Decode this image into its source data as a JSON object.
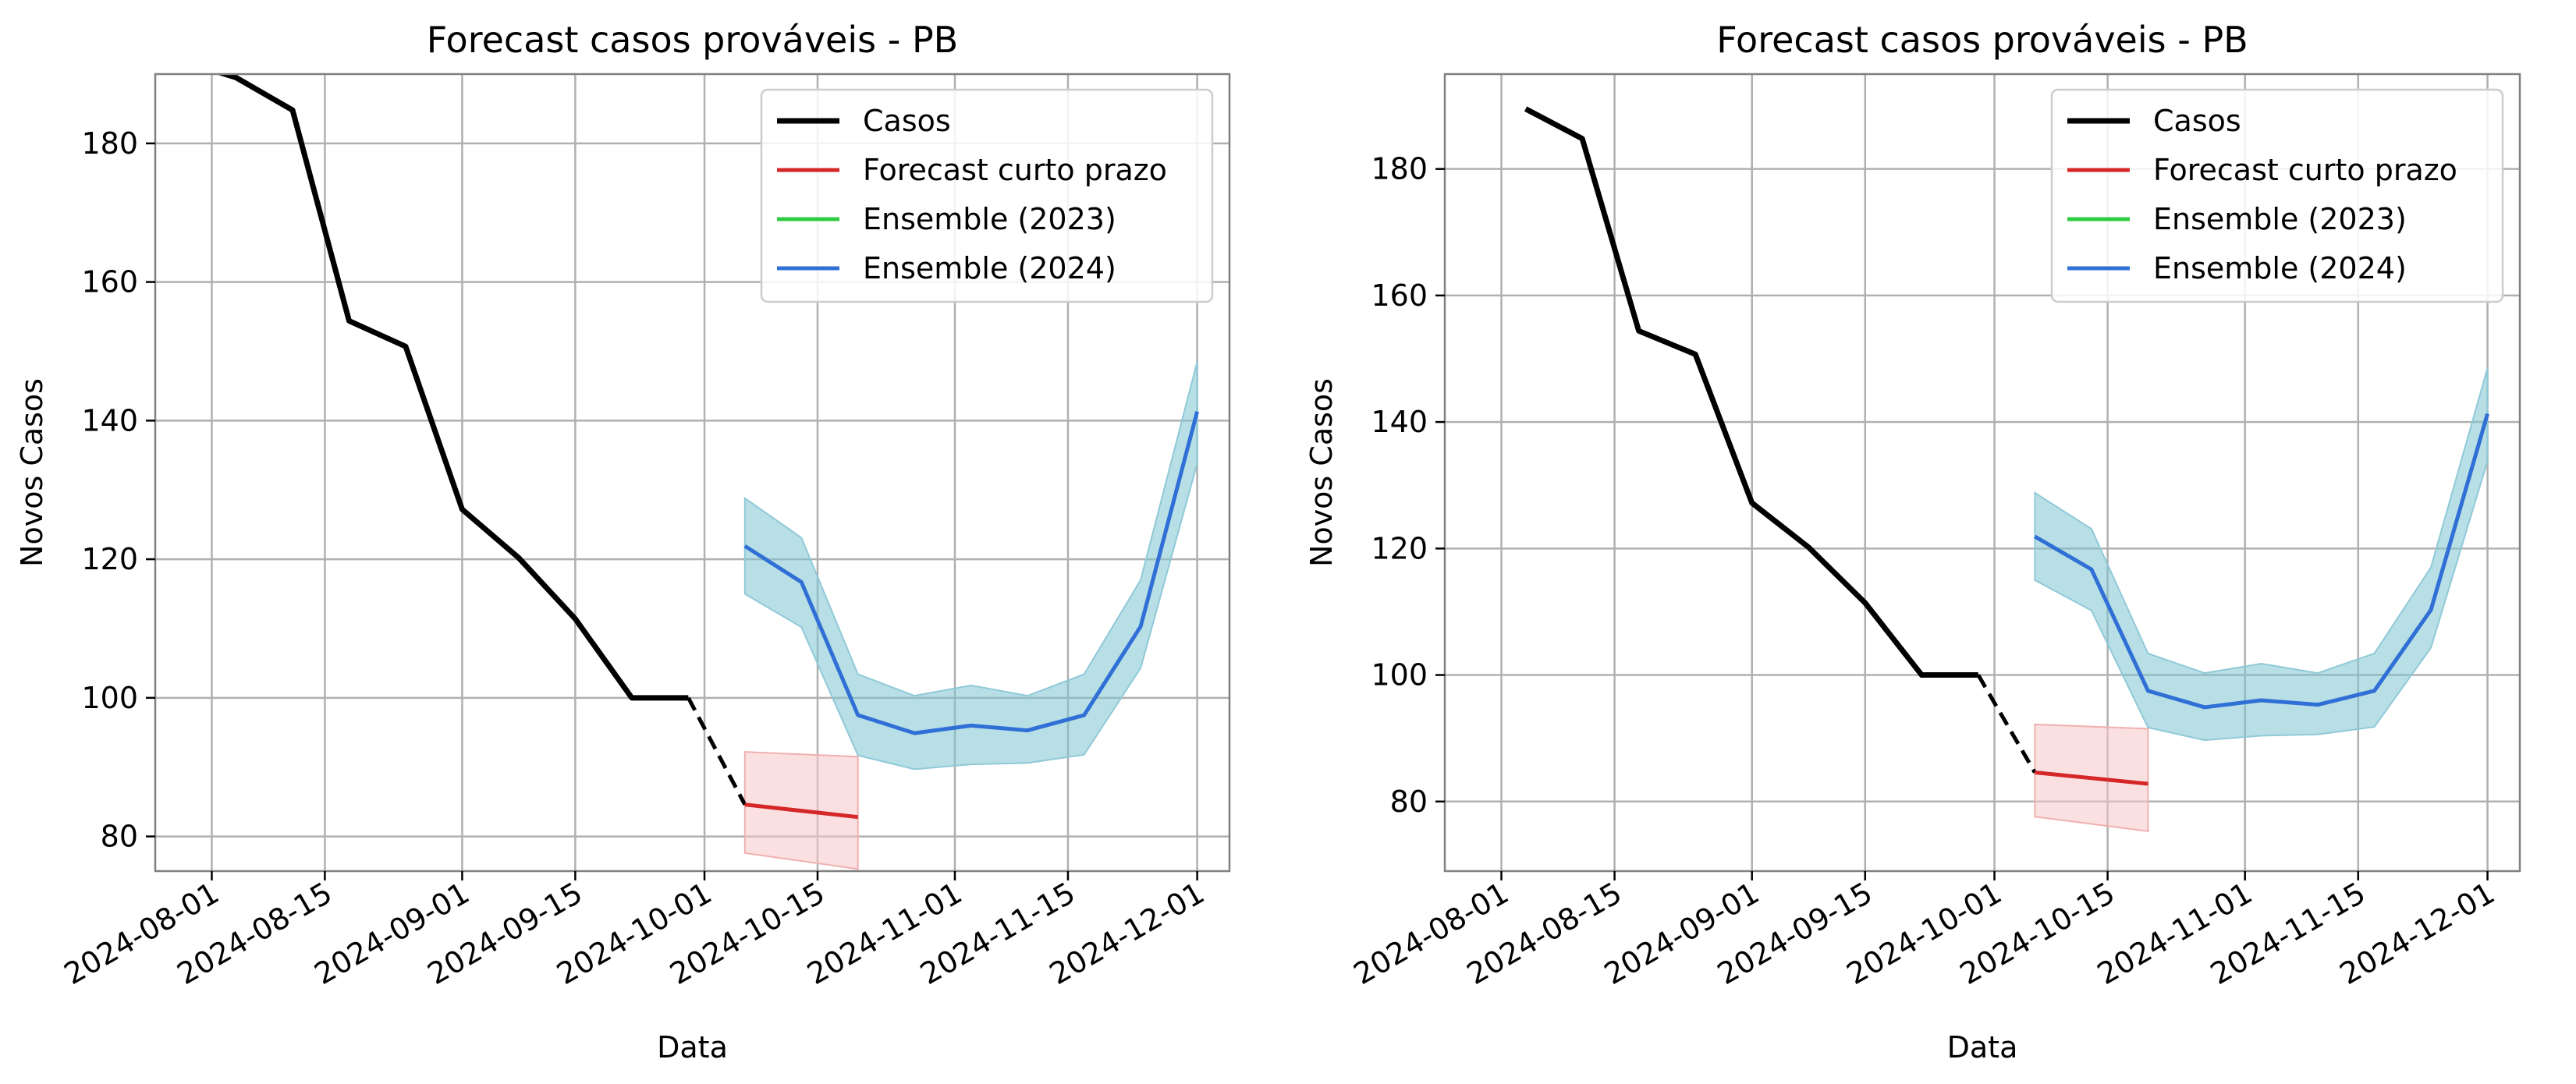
{
  "chart_data": [
    {
      "type": "line",
      "title": "Forecast casos prováveis - PB",
      "xlabel": "Data",
      "ylabel": "Novos Casos",
      "xlim": [
        "2024-07-25",
        "2024-12-05"
      ],
      "ylim": [
        75,
        190
      ],
      "xticks": [
        "2024-08-01",
        "2024-08-15",
        "2024-09-01",
        "2024-09-15",
        "2024-10-01",
        "2024-10-15",
        "2024-11-01",
        "2024-11-15",
        "2024-12-01"
      ],
      "yticks": [
        80,
        100,
        120,
        140,
        160,
        180
      ],
      "grid": true,
      "legend": "top-right",
      "colors": {
        "casos": "#000000",
        "forecast": "#d62728",
        "ens2023": "#2ecc40",
        "ens2024": "#2f6fd6",
        "band2024": "#7ec5cf",
        "bandForecast": "#f5c6c6"
      },
      "series": [
        {
          "name": "Casos",
          "key": "casos",
          "x": [
            "2024-07-28",
            "2024-08-04",
            "2024-08-11",
            "2024-08-18",
            "2024-08-25",
            "2024-09-01",
            "2024-09-08",
            "2024-09-15",
            "2024-09-22",
            "2024-09-29"
          ],
          "y": [
            192,
            189.5,
            184.8,
            154.4,
            150.7,
            127.2,
            120.2,
            111.4,
            100,
            100
          ]
        },
        {
          "name": "",
          "key": "bridge",
          "x": [
            "2024-09-29",
            "2024-10-06"
          ],
          "y": [
            100,
            84.6
          ]
        },
        {
          "name": "Forecast curto prazo",
          "key": "forecast",
          "x": [
            "2024-10-06",
            "2024-10-20"
          ],
          "y": [
            84.6,
            82.8
          ],
          "lower": [
            77.6,
            75.3
          ],
          "upper": [
            92.2,
            91.5
          ]
        },
        {
          "name": "Ensemble (2023)",
          "key": "ens2023",
          "x": [],
          "y": []
        },
        {
          "name": "Ensemble (2024)",
          "key": "ens2024",
          "x": [
            "2024-10-06",
            "2024-10-13",
            "2024-10-20",
            "2024-10-27",
            "2024-11-03",
            "2024-11-10",
            "2024-11-17",
            "2024-11-24",
            "2024-12-01"
          ],
          "y": [
            121.9,
            116.7,
            97.5,
            94.9,
            96.0,
            95.3,
            97.5,
            110.3,
            141.3
          ],
          "lower": [
            115.0,
            110.2,
            91.7,
            89.7,
            90.4,
            90.6,
            91.8,
            104.3,
            133.8
          ],
          "upper": [
            128.8,
            123.1,
            103.4,
            100.3,
            101.8,
            100.3,
            103.4,
            117.0,
            148.5
          ]
        }
      ]
    },
    {
      "type": "line",
      "title": "Forecast casos prováveis - PB",
      "xlabel": "Data",
      "ylabel": "Novos Casos",
      "xlim": [
        "2024-07-25",
        "2024-12-05"
      ],
      "ylim": [
        69,
        195
      ],
      "xticks": [
        "2024-08-01",
        "2024-08-15",
        "2024-09-01",
        "2024-09-15",
        "2024-10-01",
        "2024-10-15",
        "2024-11-01",
        "2024-11-15",
        "2024-12-01"
      ],
      "yticks": [
        80,
        100,
        120,
        140,
        160,
        180
      ],
      "grid": true,
      "legend": "top-right",
      "colors": {
        "casos": "#000000",
        "forecast": "#d62728",
        "ens2023": "#2ecc40",
        "ens2024": "#2f6fd6",
        "band2024": "#7ec5cf",
        "bandForecast": "#f5c6c6"
      },
      "series": [
        {
          "name": "Casos",
          "key": "casos",
          "x": [
            "2024-08-04",
            "2024-08-11",
            "2024-08-18",
            "2024-08-25",
            "2024-09-01",
            "2024-09-08",
            "2024-09-15",
            "2024-09-22",
            "2024-09-29"
          ],
          "y": [
            189.5,
            184.8,
            154.4,
            150.7,
            127.2,
            120.2,
            111.4,
            100,
            100
          ]
        },
        {
          "name": "",
          "key": "bridge",
          "x": [
            "2024-09-29",
            "2024-10-06"
          ],
          "y": [
            100,
            84.6
          ]
        },
        {
          "name": "Forecast curto prazo",
          "key": "forecast",
          "x": [
            "2024-10-06",
            "2024-10-20"
          ],
          "y": [
            84.6,
            82.8
          ],
          "lower": [
            77.6,
            75.3
          ],
          "upper": [
            92.2,
            91.5
          ]
        },
        {
          "name": "Ensemble (2023)",
          "key": "ens2023",
          "x": [],
          "y": []
        },
        {
          "name": "Ensemble (2024)",
          "key": "ens2024",
          "x": [
            "2024-10-06",
            "2024-10-13",
            "2024-10-20",
            "2024-10-27",
            "2024-11-03",
            "2024-11-10",
            "2024-11-17",
            "2024-11-24",
            "2024-12-01"
          ],
          "y": [
            121.9,
            116.7,
            97.5,
            94.9,
            96.0,
            95.3,
            97.5,
            110.3,
            141.3
          ],
          "lower": [
            115.0,
            110.2,
            91.7,
            89.7,
            90.4,
            90.6,
            91.8,
            104.3,
            133.8
          ],
          "upper": [
            128.8,
            123.1,
            103.4,
            100.3,
            101.8,
            100.3,
            103.4,
            117.0,
            148.5
          ]
        }
      ]
    }
  ]
}
